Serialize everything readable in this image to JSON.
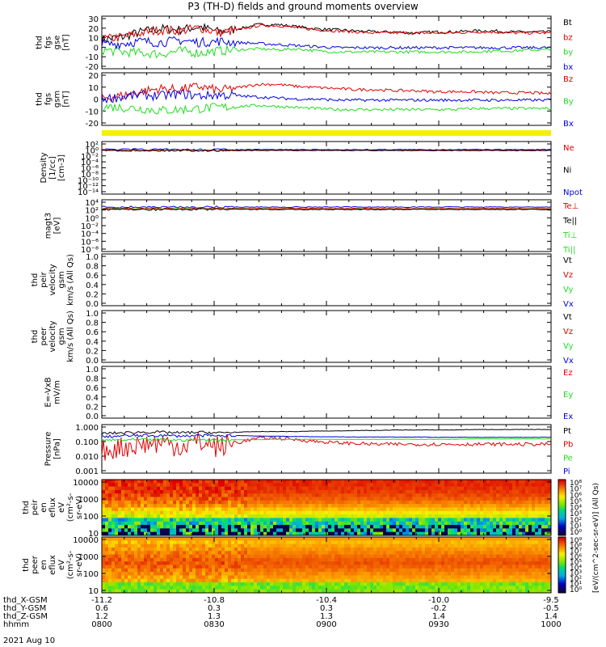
{
  "title": "P3 (TH-D) fields and ground moments overview",
  "date_label": "2021 Aug 10",
  "colors": {
    "black": "#000000",
    "red": "#e00000",
    "green": "#20dd20",
    "blue": "#0000e0",
    "bar": "#f5f000"
  },
  "chart_data": [
    {
      "type": "line",
      "name": "panel-fgs-gse",
      "ylabel": [
        "thd",
        "fgs",
        "gse",
        "[nT]"
      ],
      "ylim": [
        -20,
        30
      ],
      "yticks": [
        "30",
        "20",
        "10",
        "0",
        "-10",
        "-20"
      ],
      "legend": [
        {
          "name": "Bt",
          "color": "#000000"
        },
        {
          "name": "bz",
          "color": "#e00000"
        },
        {
          "name": "by",
          "color": "#20dd20"
        },
        {
          "name": "bx",
          "color": "#0000e0"
        }
      ],
      "series": [
        {
          "name": "Bt",
          "color": "#000000",
          "values": [
            8,
            10,
            15,
            18,
            17,
            20,
            15,
            18,
            22,
            22,
            20,
            18,
            17,
            16,
            15,
            15,
            14,
            15,
            15,
            16,
            16,
            15,
            15,
            15
          ]
        },
        {
          "name": "bz",
          "color": "#e00000",
          "values": [
            8,
            10,
            14,
            17,
            16,
            19,
            14,
            17,
            21,
            21,
            19,
            17,
            16,
            15,
            14,
            14,
            14,
            14,
            14,
            15,
            15,
            14,
            14,
            14
          ]
        },
        {
          "name": "by",
          "color": "#20dd20",
          "values": [
            -2,
            -4,
            -5,
            -6,
            -3,
            -5,
            -3,
            -2,
            -1,
            -2,
            -1,
            -3,
            -4,
            -4,
            -4,
            -4,
            -4,
            -4,
            -4,
            -4,
            -3,
            -3,
            -2,
            -2
          ]
        },
        {
          "name": "bx",
          "color": "#0000e0",
          "values": [
            3,
            4,
            6,
            5,
            7,
            5,
            6,
            5,
            4,
            3,
            2,
            1,
            0,
            0,
            0,
            0,
            0,
            0,
            0,
            0,
            0,
            0,
            0,
            0
          ]
        }
      ]
    },
    {
      "type": "line",
      "name": "panel-fgs-gsm",
      "ylabel": [
        "thd",
        "fgs",
        "gsm",
        "[nT]"
      ],
      "ylim": [
        -20,
        30
      ],
      "yticks": [
        "20",
        "10",
        "0",
        "-10",
        "-20"
      ],
      "legend": [
        {
          "name": "Bz",
          "color": "#e00000"
        },
        {
          "name": "By",
          "color": "#20dd20"
        },
        {
          "name": "Bx",
          "color": "#0000e0"
        }
      ],
      "series": [
        {
          "name": "Bz",
          "color": "#e00000",
          "values": [
            6,
            8,
            12,
            15,
            14,
            17,
            13,
            16,
            19,
            19,
            17,
            16,
            15,
            14,
            14,
            13,
            13,
            12,
            12,
            12,
            11,
            11,
            11,
            10
          ]
        },
        {
          "name": "By",
          "color": "#20dd20",
          "values": [
            -2,
            -3,
            -4,
            -6,
            -5,
            -4,
            -3,
            -2,
            -1,
            -2,
            -3,
            -4,
            -5,
            -5,
            -5,
            -5,
            -5,
            -5,
            -5,
            -4,
            -4,
            -4,
            -4,
            -4
          ]
        },
        {
          "name": "Bx",
          "color": "#0000e0",
          "values": [
            5,
            7,
            9,
            8,
            10,
            8,
            9,
            8,
            7,
            6,
            5,
            5,
            4,
            4,
            4,
            4,
            4,
            4,
            4,
            4,
            4,
            4,
            4,
            4
          ]
        }
      ]
    },
    {
      "type": "line",
      "name": "panel-density",
      "ylabel": [
        "Density",
        "[1/cc]",
        "[cm-3]"
      ],
      "yscale": "log",
      "yticks": [
        "10²",
        "10⁰",
        "10⁻²",
        "10⁻⁴",
        "10⁻⁶",
        "10⁻⁸",
        "10⁻¹⁰",
        "10⁻¹²",
        "10⁻¹⁴"
      ],
      "legend": [
        {
          "name": "Ne",
          "color": "#e00000"
        },
        {
          "name": "Ni",
          "color": "#000000"
        },
        {
          "name": "Npot",
          "color": "#0000e0"
        }
      ]
    },
    {
      "type": "line",
      "name": "panel-temperature",
      "ylabel": [
        "magt3",
        "[eV]"
      ],
      "yscale": "log",
      "yticks": [
        "10⁴",
        "10²",
        "10⁰",
        "10⁻²",
        "10⁻⁴",
        "10⁻⁶",
        "10⁻⁸"
      ],
      "legend": [
        {
          "name": "Te⊥",
          "color": "#e00000"
        },
        {
          "name": "Te||",
          "color": "#000000"
        },
        {
          "name": "Ti⊥",
          "color": "#20dd20"
        },
        {
          "name": "Ti||",
          "color": "#20dd20"
        }
      ]
    },
    {
      "type": "line",
      "name": "panel-peir-velocity",
      "ylabel": [
        "thd",
        "peir",
        "velocity",
        "gsm",
        "km/s (All Qs)"
      ],
      "ylim": [
        0,
        1
      ],
      "yticks": [
        "1.0",
        "0.8",
        "0.6",
        "0.4",
        "0.2",
        "0.0"
      ],
      "legend": [
        {
          "name": "Vt",
          "color": "#000000"
        },
        {
          "name": "Vz",
          "color": "#e00000"
        },
        {
          "name": "Vy",
          "color": "#20dd20"
        },
        {
          "name": "Vx",
          "color": "#0000e0"
        }
      ]
    },
    {
      "type": "line",
      "name": "panel-peer-velocity",
      "ylabel": [
        "thd",
        "peer",
        "velocity",
        "gsm",
        "km/s (All Qs)"
      ],
      "ylim": [
        0,
        1
      ],
      "yticks": [
        "1.0",
        "0.8",
        "0.6",
        "0.4",
        "0.2",
        "0.0"
      ],
      "legend": [
        {
          "name": "Vt",
          "color": "#000000"
        },
        {
          "name": "Vz",
          "color": "#e00000"
        },
        {
          "name": "Vy",
          "color": "#20dd20"
        },
        {
          "name": "Vx",
          "color": "#0000e0"
        }
      ]
    },
    {
      "type": "line",
      "name": "panel-efield",
      "ylabel": [
        "E=-VxB",
        "mV/m"
      ],
      "ylim": [
        0,
        1
      ],
      "yticks": [
        "1.0",
        "0.8",
        "0.6",
        "0.4",
        "0.2",
        "0.0"
      ],
      "legend": [
        {
          "name": "Ez",
          "color": "#e00000"
        },
        {
          "name": "Ey",
          "color": "#20dd20"
        },
        {
          "name": "Ex",
          "color": "#0000e0"
        }
      ]
    },
    {
      "type": "line",
      "name": "panel-pressure",
      "ylabel": [
        "Pressure",
        "[nPa]"
      ],
      "yscale": "log",
      "yticks": [
        "1.000",
        "0.100",
        "0.010",
        "0.001"
      ],
      "legend": [
        {
          "name": "Pt",
          "color": "#000000"
        },
        {
          "name": "Pb",
          "color": "#e00000"
        },
        {
          "name": "Pe",
          "color": "#20dd20"
        },
        {
          "name": "Pi",
          "color": "#0000e0"
        }
      ],
      "series": [
        {
          "name": "Pt",
          "color": "#000000",
          "values": [
            0.4,
            0.45,
            0.5,
            0.5,
            0.45,
            0.5,
            0.45,
            0.5,
            0.55,
            0.55,
            0.55,
            0.6,
            0.6,
            0.65,
            0.65,
            0.7,
            0.7,
            0.7,
            0.7,
            0.75,
            0.75,
            0.75,
            0.75,
            0.75
          ]
        },
        {
          "name": "Pb",
          "color": "#e00000",
          "values": [
            0.03,
            0.05,
            0.08,
            0.1,
            0.06,
            0.11,
            0.05,
            0.1,
            0.2,
            0.2,
            0.16,
            0.12,
            0.1,
            0.09,
            0.08,
            0.08,
            0.08,
            0.08,
            0.08,
            0.08,
            0.08,
            0.08,
            0.08,
            0.08
          ]
        },
        {
          "name": "Pe",
          "color": "#20dd20",
          "values": [
            0.15,
            0.15,
            0.16,
            0.16,
            0.15,
            0.16,
            0.15,
            0.16,
            0.16,
            0.17,
            0.17,
            0.17,
            0.17,
            0.17,
            0.17,
            0.17,
            0.17,
            0.17,
            0.17,
            0.18,
            0.18,
            0.18,
            0.18,
            0.18
          ]
        },
        {
          "name": "Pi",
          "color": "#0000e0",
          "values": [
            0.25,
            0.28,
            0.3,
            0.3,
            0.28,
            0.3,
            0.28,
            0.3,
            0.28,
            0.27,
            0.26,
            0.25,
            0.25,
            0.24,
            0.24,
            0.24,
            0.24,
            0.23,
            0.23,
            0.23,
            0.23,
            0.23,
            0.23,
            0.23
          ]
        }
      ]
    },
    {
      "type": "heatmap",
      "name": "panel-peir-spectrogram",
      "ylabel": [
        "thd",
        "peir",
        "en",
        "eflux",
        "eV",
        "(cm²-s-",
        "sr-eV)"
      ],
      "yscale": "log",
      "yticks": [
        "10000",
        "1000",
        "100",
        "10"
      ],
      "colorbar_label": "[eV/(cm^2-sec-sr-eV)] (All Qs)",
      "colorbar_ticks": [
        "10⁸",
        "10⁷",
        "10⁶",
        "10⁵",
        "10⁴",
        "10³",
        "10²",
        "10¹",
        "10⁰"
      ]
    },
    {
      "type": "heatmap",
      "name": "panel-peer-spectrogram",
      "ylabel": [
        "thd",
        "peer",
        "en",
        "eflux",
        "eV",
        "(cm²-s-",
        "sr-eV)"
      ],
      "yscale": "log",
      "yticks": [
        "10000",
        "1000",
        "100",
        "10"
      ],
      "colorbar_ticks": [
        "10⁹",
        "10⁸",
        "10⁷",
        "10⁶",
        "10⁵",
        "10⁴",
        "10³",
        "10²",
        "10¹",
        "10⁰"
      ]
    }
  ],
  "x_axis": {
    "rows": [
      {
        "label": "thd_X-GSM",
        "values": [
          "-11.2",
          "-10.8",
          "-10.4",
          "-10.0",
          "-9.5"
        ]
      },
      {
        "label": "thd_Y-GSM",
        "values": [
          "0.6",
          "0.3",
          "0.3",
          "-0.2",
          "-0.5"
        ]
      },
      {
        "label": "thd_Z-GSM",
        "values": [
          "1.2",
          "1.3",
          "1.3",
          "1.4",
          "1.4"
        ]
      },
      {
        "label": "hhmm",
        "values": [
          "0800",
          "0830",
          "0900",
          "0930",
          "1000"
        ]
      }
    ]
  }
}
